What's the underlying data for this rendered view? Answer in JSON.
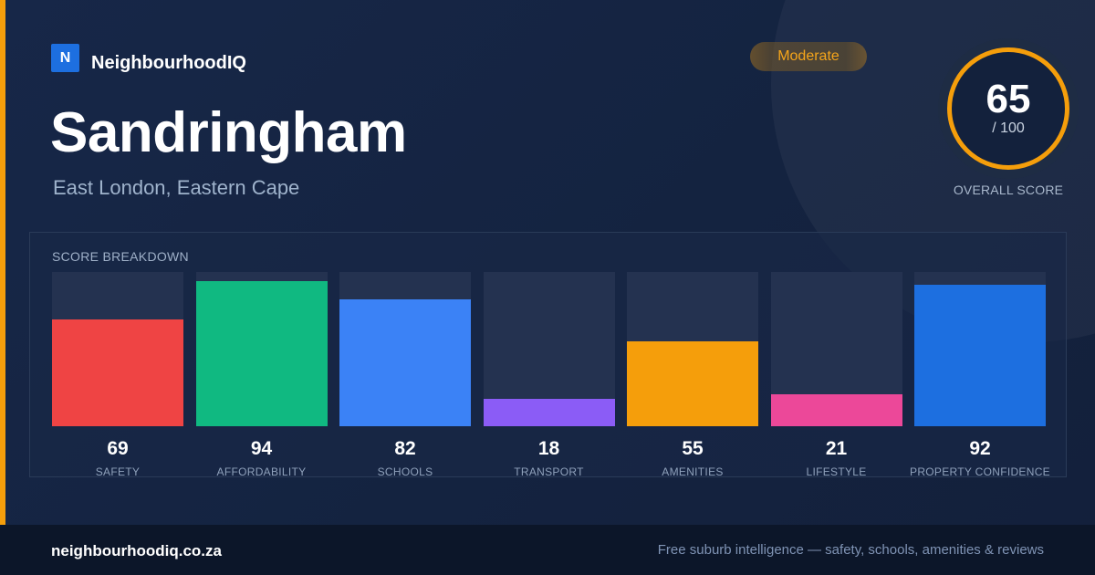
{
  "brand": {
    "logo_letter": "N",
    "name": "NeighbourhoodIQ"
  },
  "suburb": {
    "name": "Sandringham",
    "location": "East London, Eastern Cape"
  },
  "rating_badge": {
    "label": "Moderate",
    "color": "#f5a51a"
  },
  "overall_score": {
    "value": "65",
    "max_label": "/ 100",
    "caption": "OVERALL SCORE",
    "ring_color": "#f59e0b"
  },
  "breakdown": {
    "title": "SCORE BREAKDOWN",
    "max": 100,
    "items": [
      {
        "label": "SAFETY",
        "value": 69,
        "display": "69",
        "color": "#ef4444"
      },
      {
        "label": "AFFORDABILITY",
        "value": 94,
        "display": "94",
        "color": "#10b981"
      },
      {
        "label": "SCHOOLS",
        "value": 82,
        "display": "82",
        "color": "#3b82f6"
      },
      {
        "label": "TRANSPORT",
        "value": 18,
        "display": "18",
        "color": "#8b5cf6"
      },
      {
        "label": "AMENITIES",
        "value": 55,
        "display": "55",
        "color": "#f59e0b"
      },
      {
        "label": "LIFESTYLE",
        "value": 21,
        "display": "21",
        "color": "#ec4899"
      },
      {
        "label": "PROPERTY CONFIDENCE",
        "value": 92,
        "display": "92",
        "color": "#1d6fe0"
      }
    ]
  },
  "footer": {
    "domain": "neighbourhoodiq.co.za",
    "tagline": "Free suburb intelligence — safety, schools, amenities & reviews"
  }
}
